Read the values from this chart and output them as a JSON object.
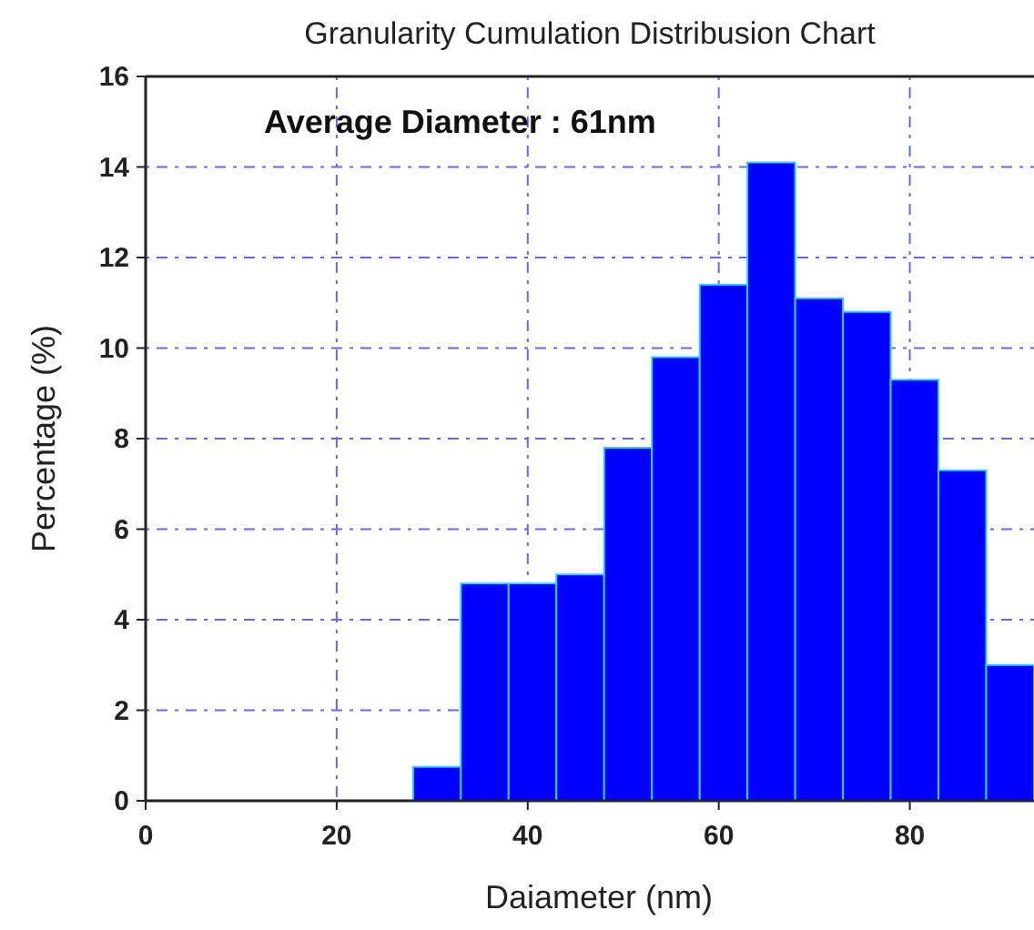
{
  "chart_data": {
    "type": "histogram",
    "title": "Granularity Cumulation Distribusion Chart",
    "xlabel": "Daiameter (nm)",
    "ylabel": "Percentage (%)",
    "annotations": [
      "Average Diameter : 61nm"
    ],
    "bins": [
      28,
      33,
      38,
      43,
      48,
      53,
      58,
      63,
      68,
      73,
      78,
      83,
      88,
      93
    ],
    "values": [
      0.75,
      4.8,
      4.8,
      5.0,
      7.8,
      9.8,
      11.4,
      14.1,
      11.1,
      10.8,
      9.3,
      7.3,
      3.0
    ],
    "color": "#0000ff",
    "xlim": [
      0,
      93
    ],
    "xticks": [
      0,
      20,
      40,
      60,
      80
    ],
    "ylim": [
      0,
      16
    ],
    "yticks": [
      0,
      2,
      4,
      6,
      8,
      10,
      12,
      14,
      16
    ],
    "grid": true
  }
}
